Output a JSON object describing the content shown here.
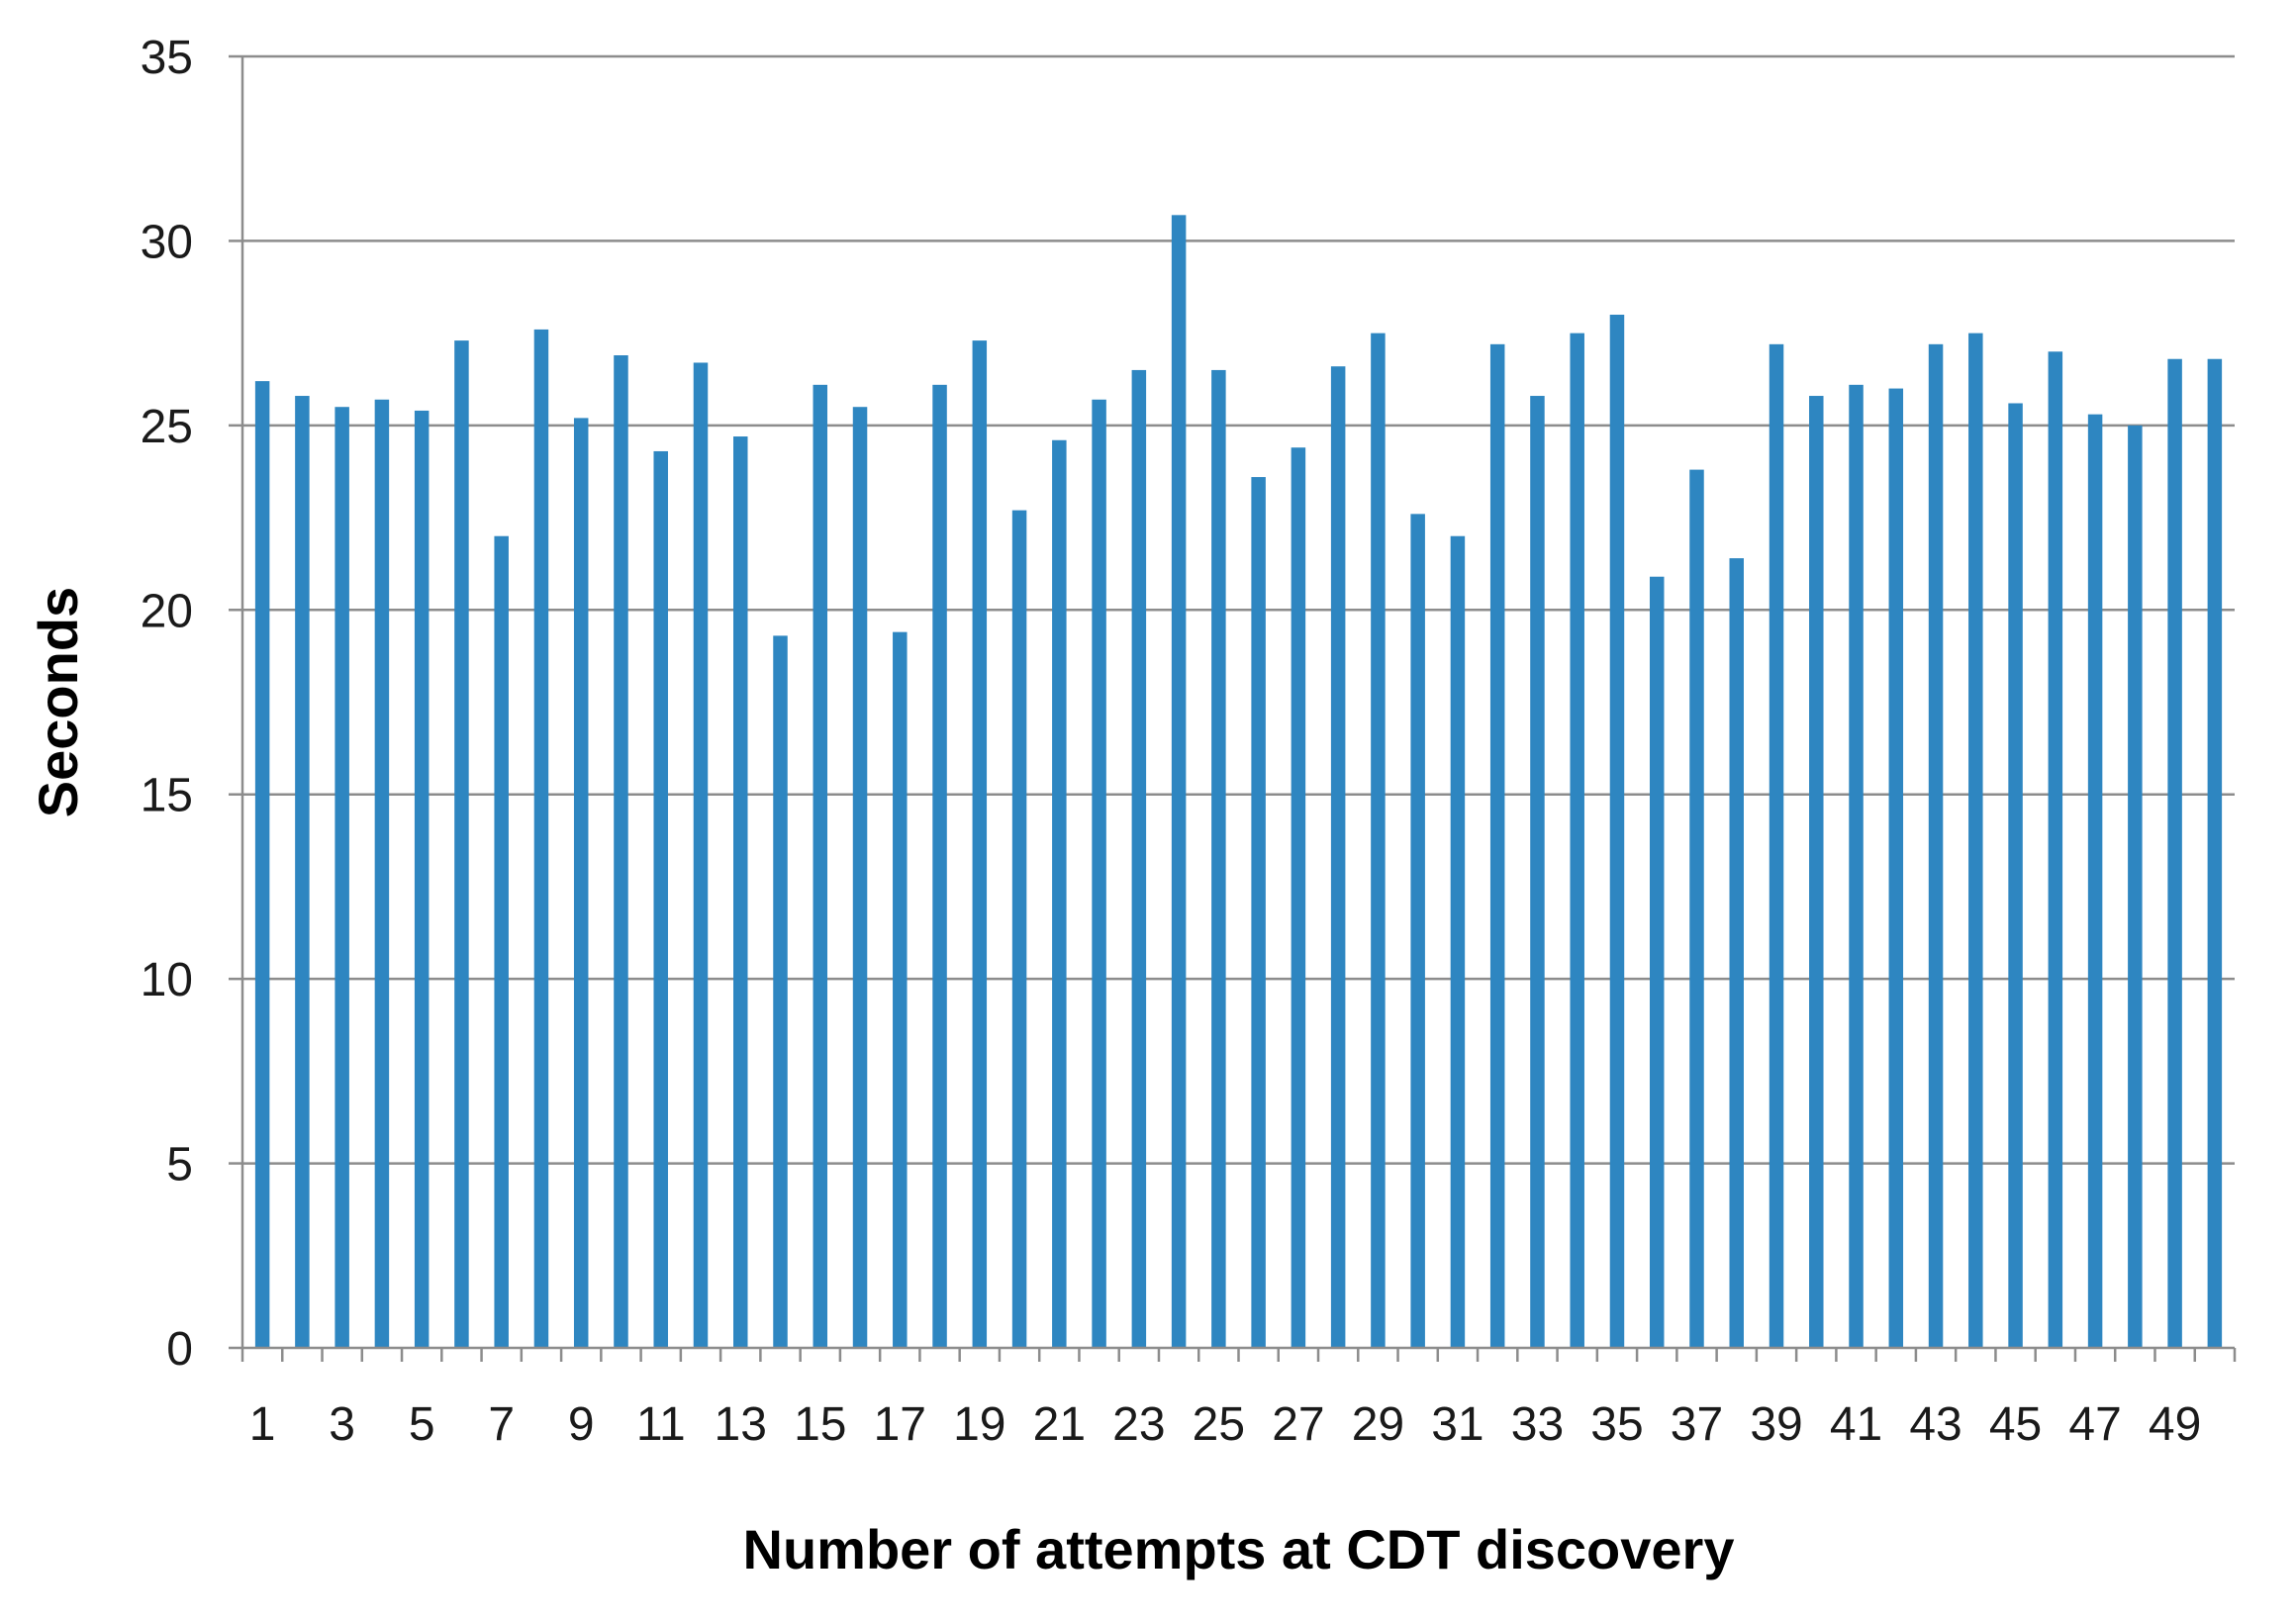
{
  "chart_data": {
    "type": "bar",
    "title": "",
    "xlabel": "Number of attempts at CDT discovery",
    "ylabel": "Seconds",
    "ylim": [
      0,
      35
    ],
    "yticks": [
      0,
      5,
      10,
      15,
      20,
      25,
      30,
      35
    ],
    "grid": true,
    "legend": "none",
    "bar_color": "#2E86C1",
    "categories": [
      1,
      2,
      3,
      4,
      5,
      6,
      7,
      8,
      9,
      10,
      11,
      12,
      13,
      14,
      15,
      16,
      17,
      18,
      19,
      20,
      21,
      22,
      23,
      24,
      25,
      26,
      27,
      28,
      29,
      30,
      31,
      32,
      33,
      34,
      35,
      36,
      37,
      38,
      39,
      40,
      41,
      42,
      43,
      44,
      45,
      46,
      47,
      48,
      49,
      50
    ],
    "category_labels_shown": [
      "1",
      "3",
      "5",
      "7",
      "9",
      "11",
      "13",
      "15",
      "17",
      "19",
      "21",
      "23",
      "25",
      "27",
      "29",
      "31",
      "33",
      "35",
      "37",
      "39",
      "41",
      "43",
      "45",
      "47",
      "49"
    ],
    "values": [
      26.2,
      25.8,
      25.5,
      25.7,
      25.4,
      27.3,
      22.0,
      27.6,
      25.2,
      26.9,
      24.3,
      26.7,
      24.7,
      19.3,
      26.1,
      25.5,
      19.4,
      26.1,
      27.3,
      22.7,
      24.6,
      25.7,
      26.5,
      30.7,
      26.5,
      23.6,
      24.4,
      26.6,
      27.5,
      22.6,
      22.0,
      27.2,
      25.8,
      27.5,
      28.0,
      20.9,
      23.8,
      21.4,
      27.2,
      25.8,
      26.1,
      26.0,
      27.2,
      27.5,
      25.6,
      27.0,
      25.3,
      25.0,
      26.8,
      26.8
    ]
  }
}
